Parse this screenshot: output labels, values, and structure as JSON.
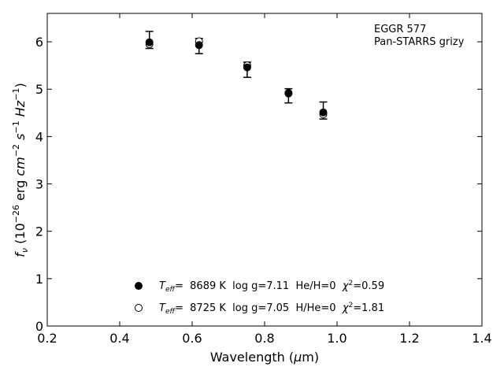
{
  "chart_data": {
    "type": "scatter",
    "annotation": [
      "EGGR 577",
      "Pan-STARRS grizy"
    ],
    "xlabel_parts": [
      "Wavelength (",
      "μ",
      "m)"
    ],
    "ylabel_parts": [
      "f",
      "ν",
      " (10",
      "−26",
      " erg ",
      "cm",
      "−2",
      " ",
      "s",
      "−1",
      " ",
      "Hz",
      "−1",
      ")"
    ],
    "xlim": [
      0.2,
      1.4
    ],
    "ylim": [
      0,
      6.6
    ],
    "xticks": [
      "0.2",
      "0.4",
      "0.6",
      "0.8",
      "1.0",
      "1.2",
      "1.4"
    ],
    "yticks": [
      "0",
      "1",
      "2",
      "3",
      "4",
      "5",
      "6"
    ],
    "grid": false,
    "legend_position": "lower-center",
    "series": [
      {
        "name": "Teff= 8689 K log g=7.11 He/H=0 χ2=0.59",
        "legend_parts": [
          "T",
          "eff",
          "=  8689 K  log g=7.11  He/H=0  ",
          "χ",
          "2",
          "=0.59"
        ],
        "marker": "filled-circle",
        "x": [
          0.482,
          0.619,
          0.752,
          0.866,
          0.962
        ],
        "y": [
          5.99,
          5.93,
          5.46,
          4.91,
          4.51
        ]
      },
      {
        "name": "Teff= 8725 K log g=7.05 H/He=0 χ2=1.81",
        "legend_parts": [
          "T",
          "eff",
          "=  8725 K  log g=7.05  H/He=0  ",
          "χ",
          "2",
          "=1.81"
        ],
        "marker": "open-circle",
        "x": [
          0.482,
          0.619,
          0.752,
          0.866,
          0.962
        ],
        "y": [
          5.95,
          6.01,
          5.5,
          4.92,
          4.47
        ]
      }
    ],
    "observed": {
      "x": [
        0.482,
        0.619,
        0.752,
        0.866,
        0.962
      ],
      "y": [
        6.04,
        5.91,
        5.41,
        4.86,
        4.49
      ],
      "yerr_low": [
        0.18,
        0.16,
        0.16,
        0.15,
        0.12
      ],
      "yerr_high": [
        0.18,
        0.16,
        0.16,
        0.15,
        0.24
      ]
    }
  }
}
